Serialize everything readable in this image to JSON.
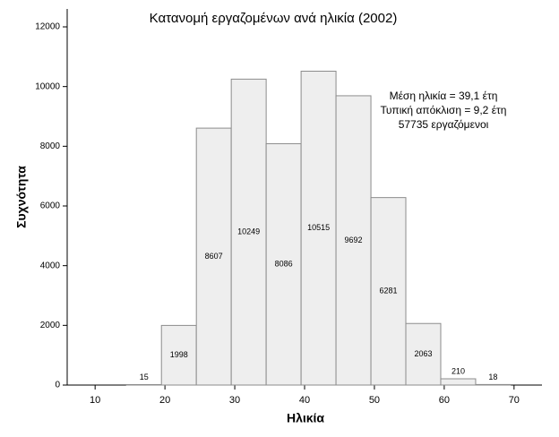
{
  "chart_data": {
    "type": "histogram",
    "title": "Κατανομή εργαζομένων ανά ηλικία (2002)",
    "x_label": "Ηλικία",
    "y_label": "Συχνότητα",
    "bins": [
      14.5,
      19.5,
      24.5,
      29.5,
      34.5,
      39.5,
      44.5,
      49.5,
      54.5,
      59.5,
      64.5,
      69.5
    ],
    "values": [
      15,
      1998,
      8607,
      10249,
      8086,
      10515,
      9692,
      6281,
      2063,
      210,
      18
    ],
    "color": "#eeeeee",
    "xlim": [
      6,
      74
    ],
    "xticks": [
      10,
      20,
      30,
      40,
      50,
      60,
      70
    ],
    "ylim": [
      0,
      12600
    ],
    "yticks": [
      0,
      2000,
      4000,
      6000,
      8000,
      10000,
      12000
    ],
    "annotation": [
      "Μέση ηλικία = 39,1 έτη",
      "Τυπική απόκλιση = 9,2 έτη",
      "57735 εργαζόμενοι"
    ]
  }
}
